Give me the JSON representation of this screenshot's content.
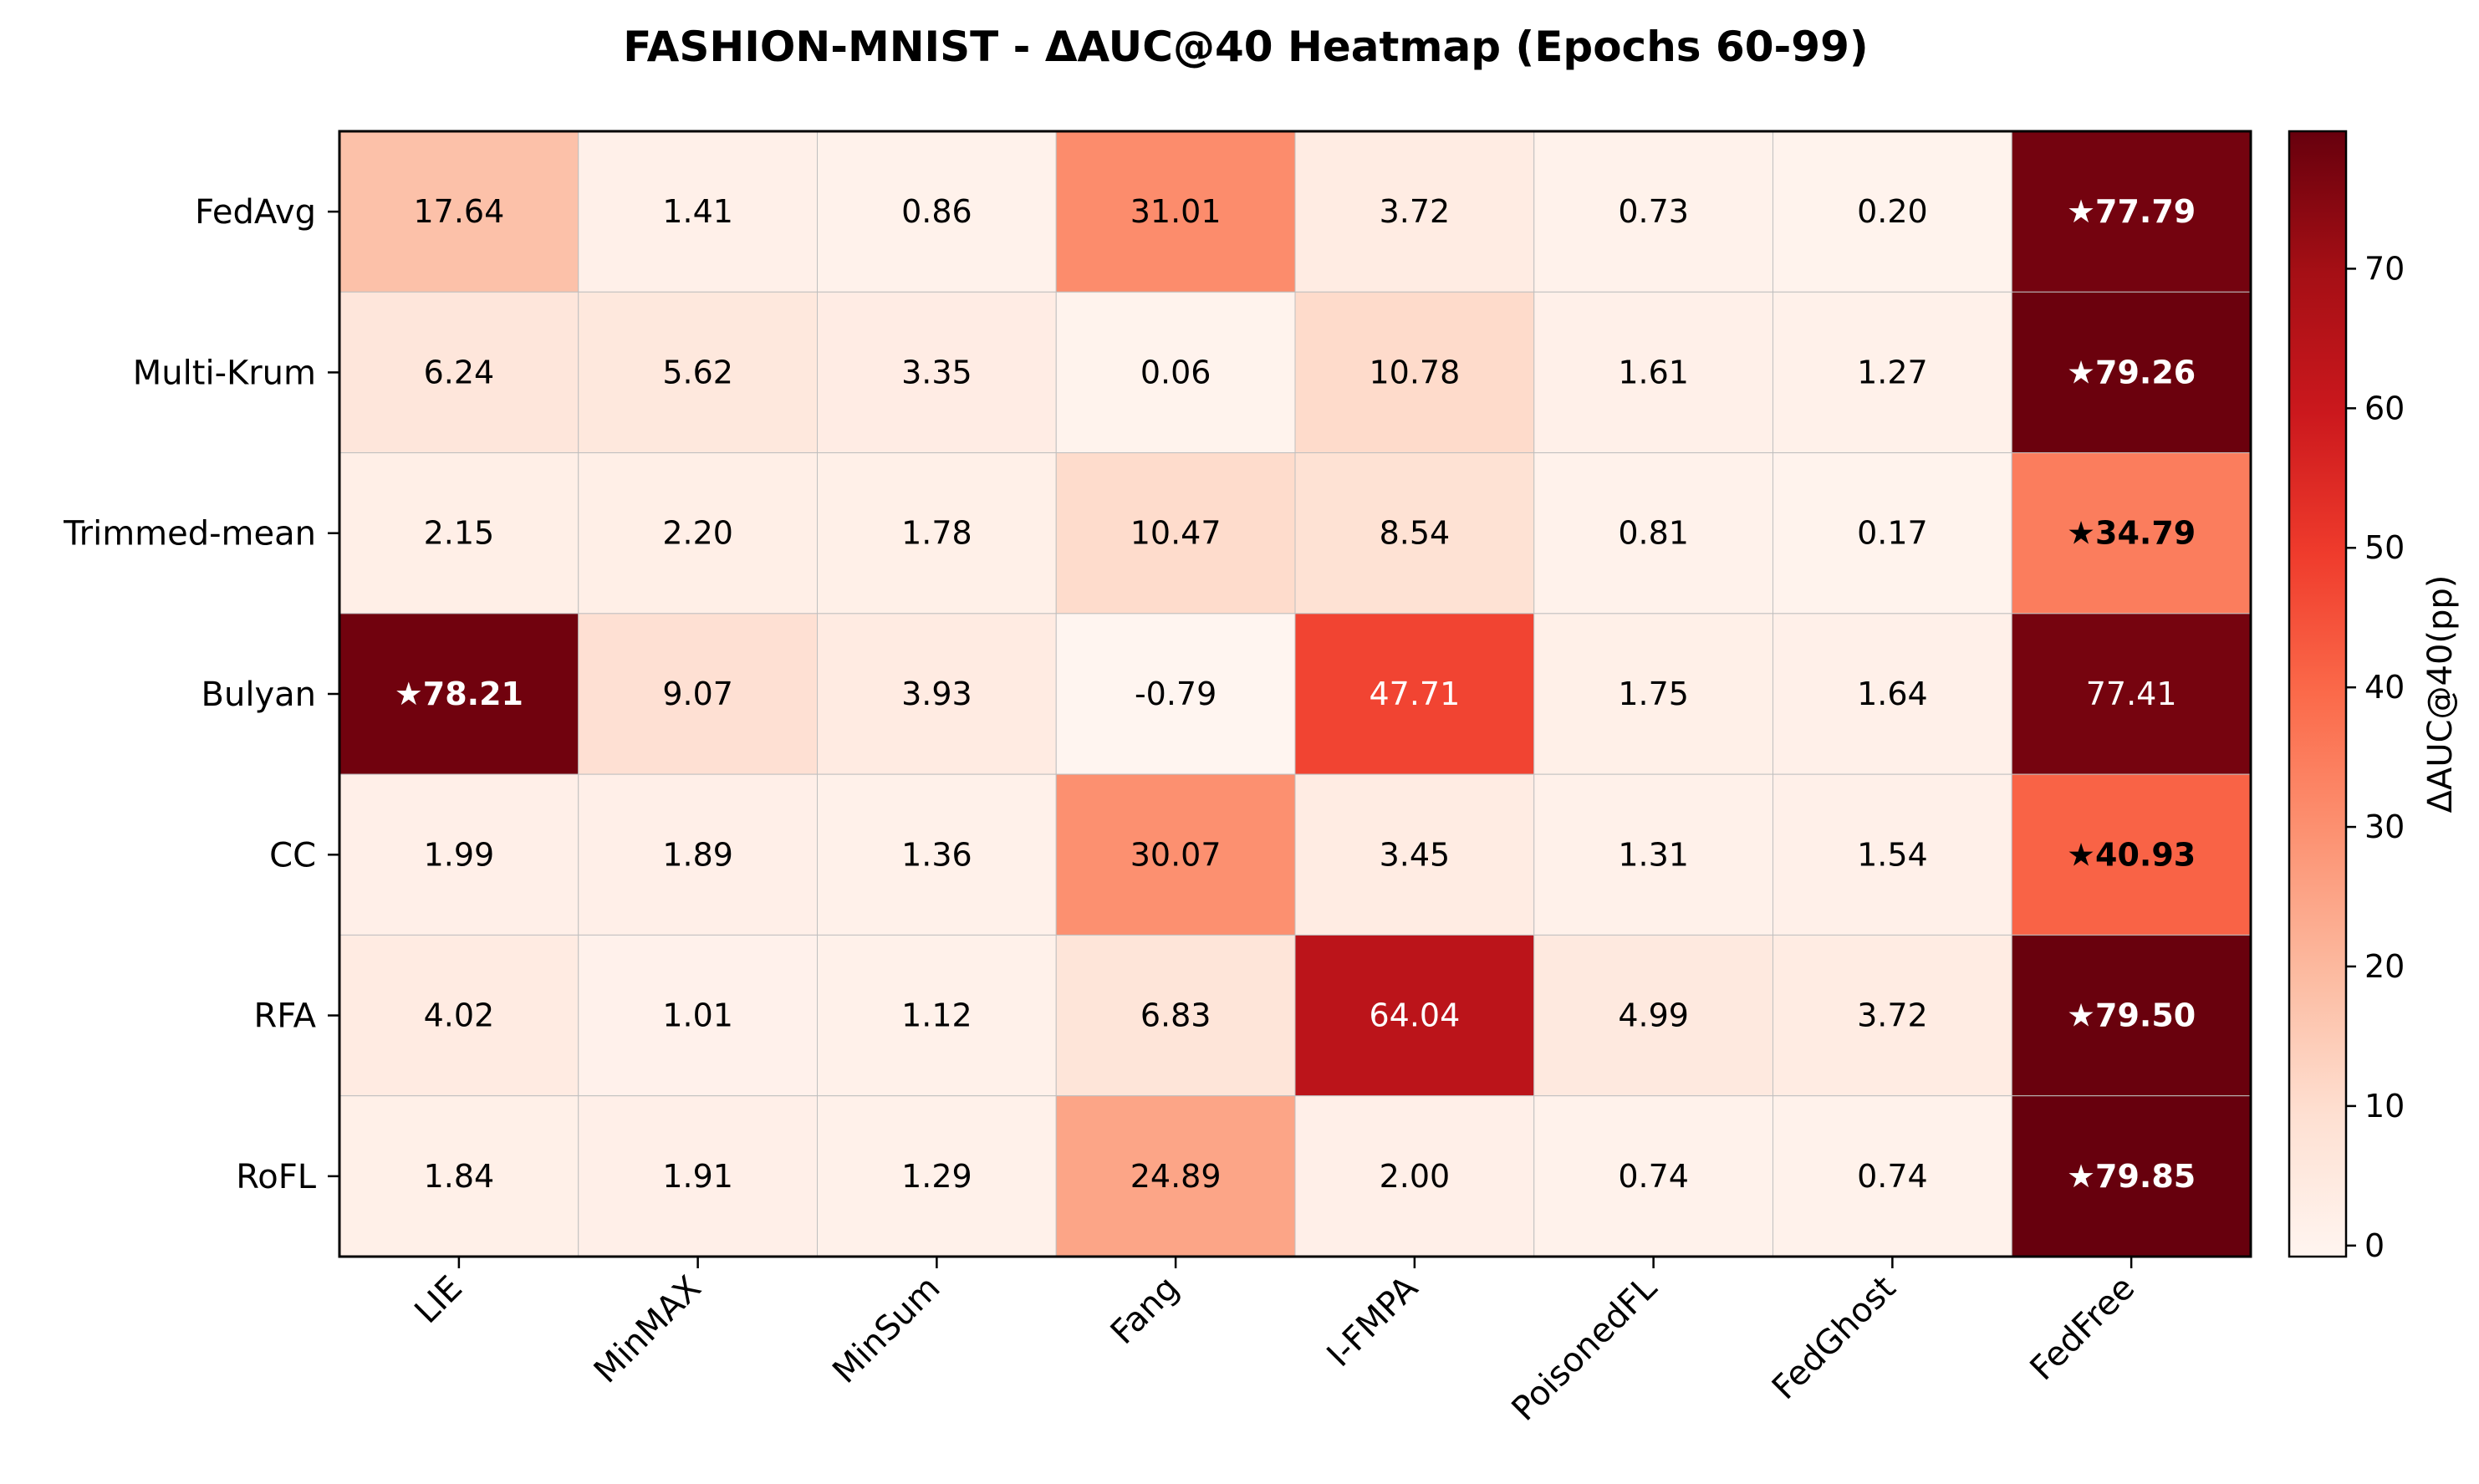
{
  "chart_data": {
    "type": "heatmap",
    "title": "FASHION-MNIST - ΔAUC@40 Heatmap (Epochs 60-99)",
    "rows": [
      "FedAvg",
      "Multi-Krum",
      "Trimmed-mean",
      "Bulyan",
      "CC",
      "RFA",
      "RoFL"
    ],
    "columns": [
      "LIE",
      "MinMAX",
      "MinSum",
      "Fang",
      "I-FMPA",
      "PoisonedFL",
      "FedGhost",
      "FedFree"
    ],
    "values": [
      [
        17.64,
        1.41,
        0.86,
        31.01,
        3.72,
        0.73,
        0.2,
        77.79
      ],
      [
        6.24,
        5.62,
        3.35,
        0.06,
        10.78,
        1.61,
        1.27,
        79.26
      ],
      [
        2.15,
        2.2,
        1.78,
        10.47,
        8.54,
        0.81,
        0.17,
        34.79
      ],
      [
        78.21,
        9.07,
        3.93,
        -0.79,
        47.71,
        1.75,
        1.64,
        77.41
      ],
      [
        1.99,
        1.89,
        1.36,
        30.07,
        3.45,
        1.31,
        1.54,
        40.93
      ],
      [
        4.02,
        1.01,
        1.12,
        6.83,
        64.04,
        4.99,
        3.72,
        79.5
      ],
      [
        1.84,
        1.91,
        1.29,
        24.89,
        2.0,
        0.74,
        0.74,
        79.85
      ]
    ],
    "labels": [
      [
        "17.64",
        "1.41",
        "0.86",
        "31.01",
        "3.72",
        "0.73",
        "0.20",
        "★77.79"
      ],
      [
        "6.24",
        "5.62",
        "3.35",
        "0.06",
        "10.78",
        "1.61",
        "1.27",
        "★79.26"
      ],
      [
        "2.15",
        "2.20",
        "1.78",
        "10.47",
        "8.54",
        "0.81",
        "0.17",
        "★34.79"
      ],
      [
        "★78.21",
        "9.07",
        "3.93",
        "-0.79",
        "47.71",
        "1.75",
        "1.64",
        "77.41"
      ],
      [
        "1.99",
        "1.89",
        "1.36",
        "30.07",
        "3.45",
        "1.31",
        "1.54",
        "★40.93"
      ],
      [
        "4.02",
        "1.01",
        "1.12",
        "6.83",
        "64.04",
        "4.99",
        "3.72",
        "★79.50"
      ],
      [
        "1.84",
        "1.91",
        "1.29",
        "24.89",
        "2.00",
        "0.74",
        "0.74",
        "★79.85"
      ]
    ],
    "colorbar": {
      "label": "ΔAUC@40(pp)",
      "range": [
        -0.79,
        79.85
      ],
      "ticks": [
        0,
        10,
        20,
        30,
        40,
        50,
        60,
        70
      ],
      "colormap": "Reds"
    },
    "grid": false
  }
}
